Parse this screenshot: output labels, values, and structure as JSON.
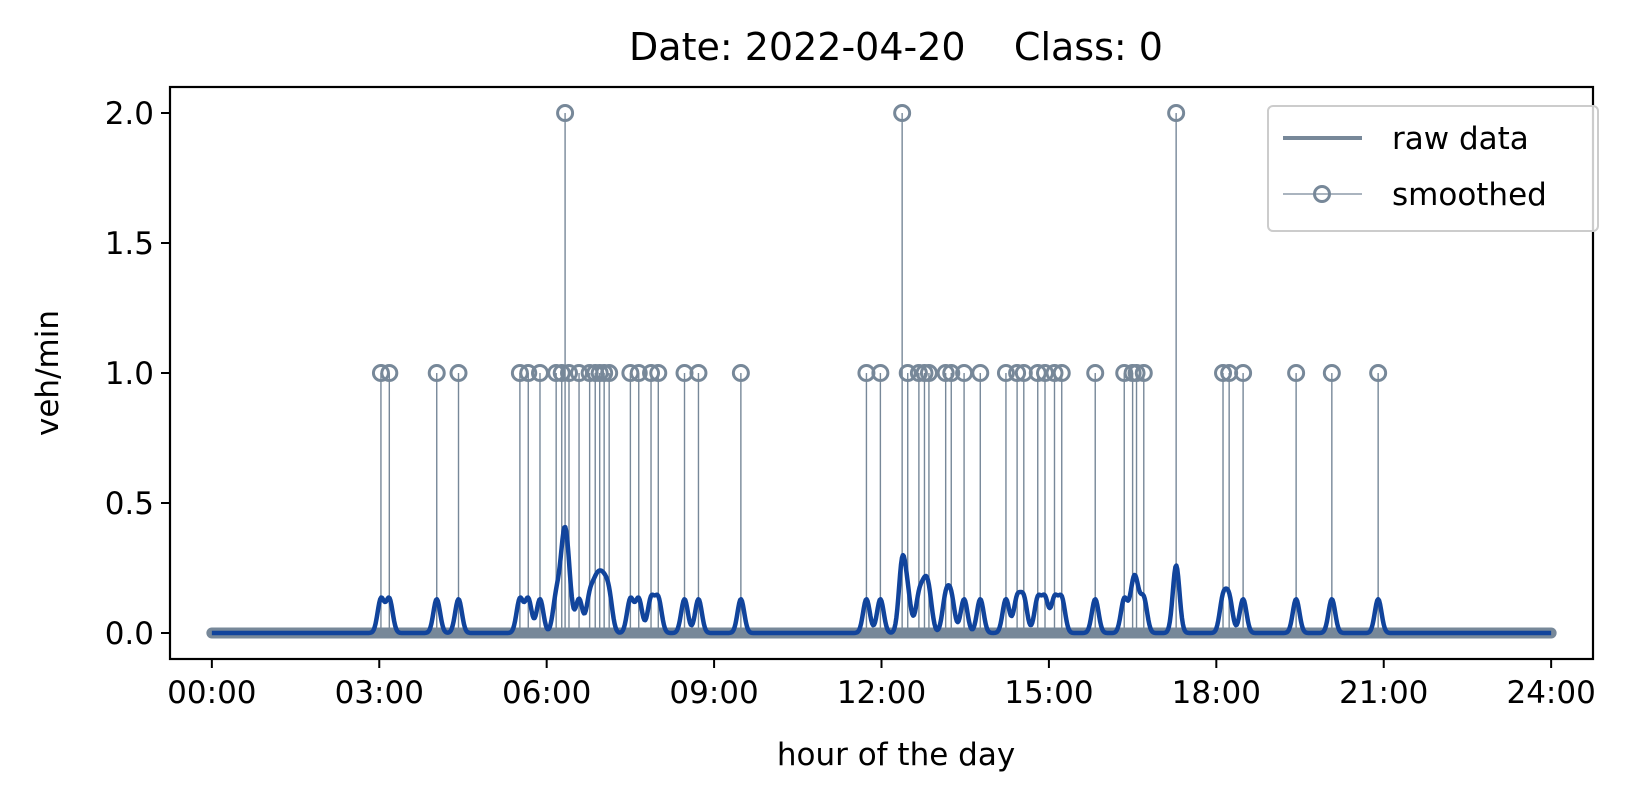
{
  "chart_data": {
    "type": "line",
    "title": "Date: 2022-04-20    Class: 0",
    "xlabel": "hour of the day",
    "ylabel": "veh/min",
    "xlim": [
      -0.75,
      24.75
    ],
    "ylim": [
      -0.1,
      2.1
    ],
    "grid": false,
    "legend_placement": "top-right",
    "x_ticks": [
      {
        "value": 0,
        "label": "00:00"
      },
      {
        "value": 3,
        "label": "03:00"
      },
      {
        "value": 6,
        "label": "06:00"
      },
      {
        "value": 9,
        "label": "09:00"
      },
      {
        "value": 12,
        "label": "12:00"
      },
      {
        "value": 15,
        "label": "15:00"
      },
      {
        "value": 18,
        "label": "18:00"
      },
      {
        "value": 21,
        "label": "21:00"
      },
      {
        "value": 24,
        "label": "24:00"
      }
    ],
    "y_ticks": [
      {
        "value": 0,
        "label": "0.0"
      },
      {
        "value": 0.5,
        "label": "0.5"
      },
      {
        "value": 1,
        "label": "1.0"
      },
      {
        "value": 1.5,
        "label": "1.5"
      },
      {
        "value": 2,
        "label": "2.0"
      }
    ],
    "series": [
      {
        "name": "raw data",
        "style": "stem-markers",
        "color": "#778899",
        "baseline": 0,
        "events": [
          {
            "x": 3.03,
            "y": 1
          },
          {
            "x": 3.18,
            "y": 1
          },
          {
            "x": 4.03,
            "y": 1
          },
          {
            "x": 4.42,
            "y": 1
          },
          {
            "x": 5.52,
            "y": 1
          },
          {
            "x": 5.67,
            "y": 1
          },
          {
            "x": 5.88,
            "y": 1
          },
          {
            "x": 6.17,
            "y": 1
          },
          {
            "x": 6.27,
            "y": 1
          },
          {
            "x": 6.33,
            "y": 2
          },
          {
            "x": 6.4,
            "y": 1
          },
          {
            "x": 6.58,
            "y": 1
          },
          {
            "x": 6.77,
            "y": 1
          },
          {
            "x": 6.87,
            "y": 1
          },
          {
            "x": 6.95,
            "y": 1
          },
          {
            "x": 7.03,
            "y": 1
          },
          {
            "x": 7.12,
            "y": 1
          },
          {
            "x": 7.5,
            "y": 1
          },
          {
            "x": 7.65,
            "y": 1
          },
          {
            "x": 7.87,
            "y": 1
          },
          {
            "x": 8.0,
            "y": 1
          },
          {
            "x": 8.47,
            "y": 1
          },
          {
            "x": 8.72,
            "y": 1
          },
          {
            "x": 9.48,
            "y": 1
          },
          {
            "x": 11.73,
            "y": 1
          },
          {
            "x": 11.98,
            "y": 1
          },
          {
            "x": 12.37,
            "y": 2
          },
          {
            "x": 12.47,
            "y": 1
          },
          {
            "x": 12.67,
            "y": 1
          },
          {
            "x": 12.77,
            "y": 1
          },
          {
            "x": 12.85,
            "y": 1
          },
          {
            "x": 13.15,
            "y": 1
          },
          {
            "x": 13.25,
            "y": 1
          },
          {
            "x": 13.48,
            "y": 1
          },
          {
            "x": 13.77,
            "y": 1
          },
          {
            "x": 14.23,
            "y": 1
          },
          {
            "x": 14.43,
            "y": 1
          },
          {
            "x": 14.55,
            "y": 1
          },
          {
            "x": 14.8,
            "y": 1
          },
          {
            "x": 14.93,
            "y": 1
          },
          {
            "x": 15.1,
            "y": 1
          },
          {
            "x": 15.23,
            "y": 1
          },
          {
            "x": 15.83,
            "y": 1
          },
          {
            "x": 16.35,
            "y": 1
          },
          {
            "x": 16.5,
            "y": 1
          },
          {
            "x": 16.57,
            "y": 1
          },
          {
            "x": 16.7,
            "y": 1
          },
          {
            "x": 17.28,
            "y": 2
          },
          {
            "x": 18.12,
            "y": 1
          },
          {
            "x": 18.23,
            "y": 1
          },
          {
            "x": 18.48,
            "y": 1
          },
          {
            "x": 19.43,
            "y": 1
          },
          {
            "x": 20.07,
            "y": 1
          },
          {
            "x": 20.9,
            "y": 1
          }
        ]
      },
      {
        "name": "smoothed",
        "style": "line",
        "color": "#11449c",
        "kernel_sigma_hours": 0.06,
        "kernel_scale": 0.13,
        "x_range": [
          0,
          24
        ]
      }
    ]
  }
}
